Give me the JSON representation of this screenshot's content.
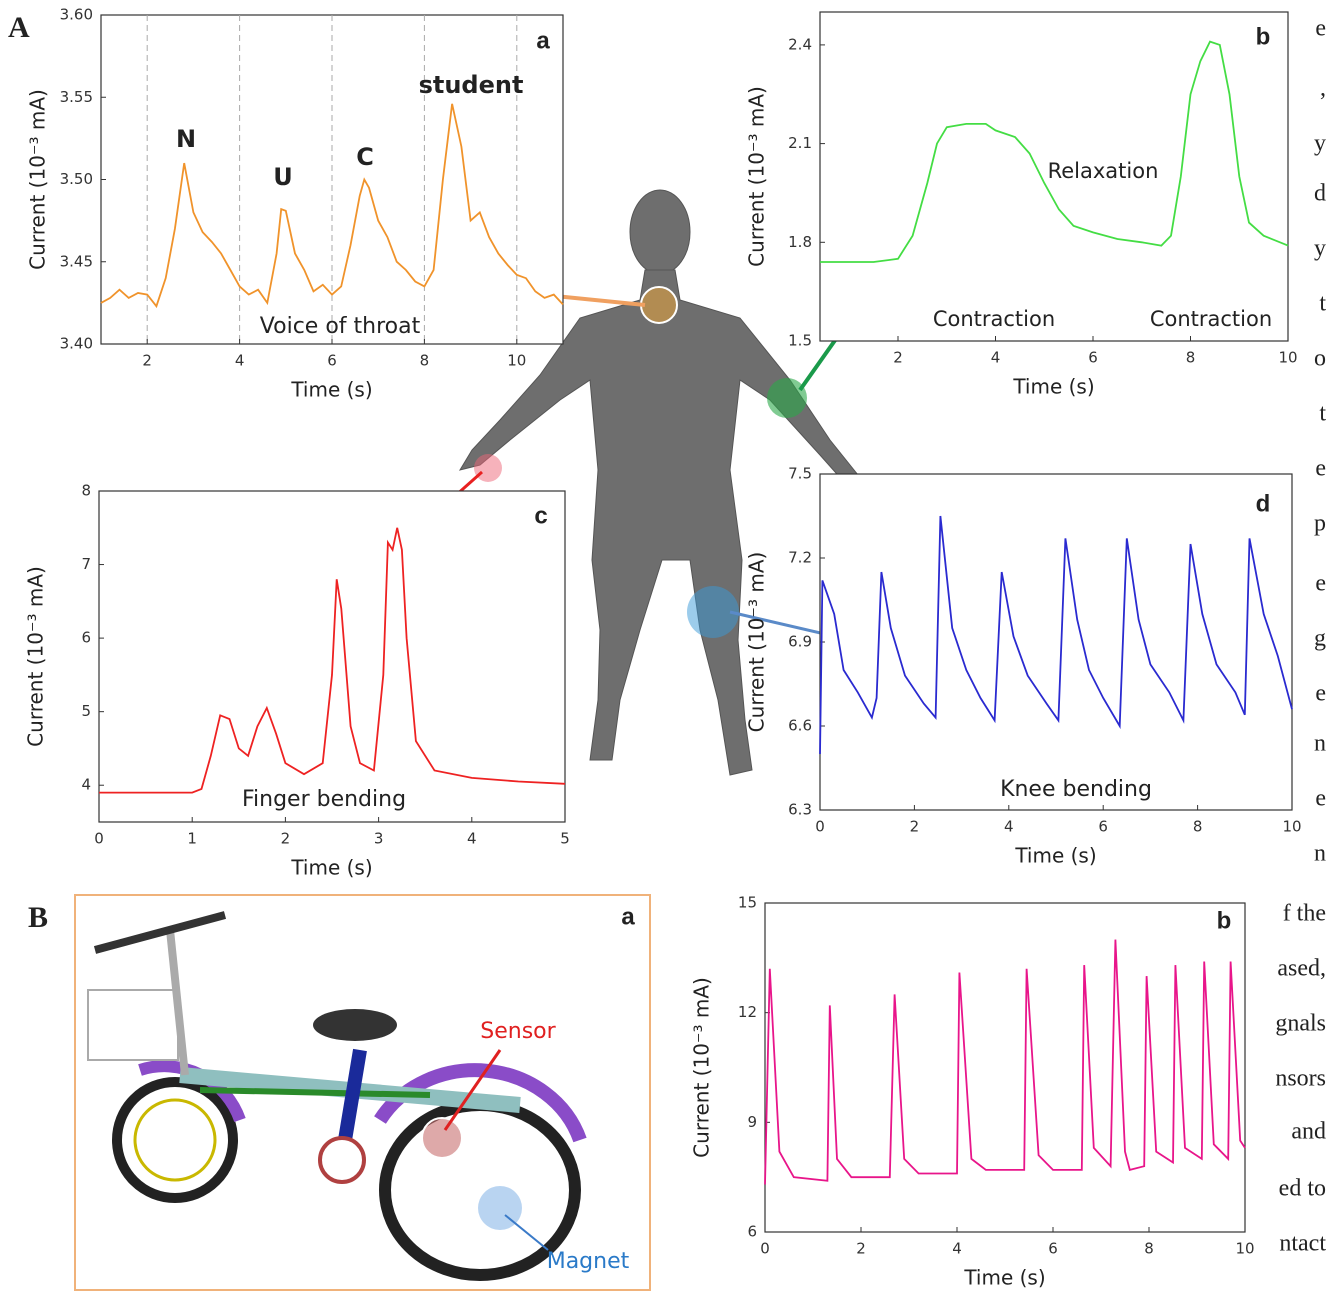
{
  "panel_labels": [
    "A",
    "B"
  ],
  "chart_data": [
    {
      "type": "line",
      "panel_label": "a",
      "color": "#f0932b",
      "grid": true,
      "x_label": "Time (s)",
      "y_label": "Current (10⁻³ mA)",
      "annotations": [
        "N",
        "U",
        "C",
        "student",
        "Voice of throat"
      ],
      "xlim": [
        1,
        11
      ],
      "xticks": [
        2,
        4,
        6,
        8,
        10
      ],
      "ylim": [
        3.4,
        3.6
      ],
      "yticks": [
        {
          "value": 3.4,
          "label": "3.40"
        },
        {
          "value": 3.45,
          "label": "3.45"
        },
        {
          "value": 3.5,
          "label": "3.50"
        },
        {
          "value": 3.55,
          "label": "3.55"
        },
        {
          "value": 3.6,
          "label": "3.60"
        }
      ],
      "x": [
        1.0,
        1.2,
        1.4,
        1.6,
        1.8,
        2.0,
        2.2,
        2.4,
        2.6,
        2.8,
        3.0,
        3.2,
        3.4,
        3.6,
        3.8,
        4.0,
        4.2,
        4.4,
        4.6,
        4.8,
        4.9,
        5.0,
        5.2,
        5.4,
        5.6,
        5.8,
        6.0,
        6.2,
        6.4,
        6.6,
        6.7,
        6.8,
        7.0,
        7.2,
        7.4,
        7.6,
        7.8,
        8.0,
        8.2,
        8.4,
        8.6,
        8.8,
        9.0,
        9.2,
        9.4,
        9.6,
        9.8,
        10.0,
        10.2,
        10.4,
        10.6,
        10.8,
        11.0
      ],
      "values": [
        3.425,
        3.428,
        3.433,
        3.428,
        3.431,
        3.43,
        3.423,
        3.44,
        3.47,
        3.51,
        3.48,
        3.468,
        3.462,
        3.455,
        3.445,
        3.435,
        3.43,
        3.433,
        3.425,
        3.455,
        3.482,
        3.481,
        3.455,
        3.445,
        3.432,
        3.436,
        3.43,
        3.435,
        3.46,
        3.49,
        3.5,
        3.495,
        3.475,
        3.465,
        3.45,
        3.445,
        3.438,
        3.435,
        3.445,
        3.5,
        3.546,
        3.52,
        3.475,
        3.48,
        3.465,
        3.455,
        3.448,
        3.442,
        3.44,
        3.432,
        3.428,
        3.43,
        3.424
      ]
    },
    {
      "type": "line",
      "panel_label": "b",
      "color": "#44dd44",
      "x_label": "Time (s)",
      "y_label": "Current (10⁻³ mA)",
      "annotations": [
        "Relaxation",
        "Contraction",
        "Contraction"
      ],
      "xlim": [
        0.4,
        10
      ],
      "xticks": [
        2,
        4,
        6,
        8,
        10
      ],
      "ylim": [
        1.5,
        2.5
      ],
      "yticks": [
        1.5,
        1.8,
        2.1,
        2.4
      ],
      "x": [
        0.4,
        1.0,
        1.5,
        2.0,
        2.3,
        2.6,
        2.8,
        3.0,
        3.4,
        3.8,
        4.0,
        4.4,
        4.7,
        5.0,
        5.3,
        5.6,
        6.0,
        6.5,
        7.0,
        7.4,
        7.6,
        7.8,
        8.0,
        8.2,
        8.4,
        8.6,
        8.8,
        9.0,
        9.2,
        9.5,
        10.0
      ],
      "values": [
        1.74,
        1.74,
        1.74,
        1.75,
        1.82,
        1.98,
        2.1,
        2.15,
        2.16,
        2.16,
        2.14,
        2.12,
        2.07,
        1.98,
        1.9,
        1.85,
        1.83,
        1.81,
        1.8,
        1.79,
        1.82,
        2.0,
        2.25,
        2.35,
        2.41,
        2.4,
        2.25,
        2.0,
        1.86,
        1.82,
        1.79
      ]
    },
    {
      "type": "line",
      "panel_label": "c",
      "color": "#ee2222",
      "x_label": "Time (s)",
      "y_label": "Current (10⁻³ mA)",
      "annotations": [
        "Finger bending"
      ],
      "xlim": [
        0,
        5
      ],
      "xticks": [
        0,
        1,
        2,
        3,
        4,
        5
      ],
      "ylim": [
        3.5,
        8
      ],
      "yticks": [
        4,
        5,
        6,
        7,
        8
      ],
      "x": [
        0,
        0.5,
        1.0,
        1.1,
        1.2,
        1.3,
        1.4,
        1.5,
        1.6,
        1.7,
        1.8,
        1.9,
        2.0,
        2.2,
        2.4,
        2.5,
        2.55,
        2.6,
        2.7,
        2.8,
        2.95,
        3.05,
        3.1,
        3.15,
        3.2,
        3.25,
        3.3,
        3.4,
        3.6,
        4.0,
        4.5,
        5.0
      ],
      "values": [
        3.9,
        3.9,
        3.9,
        3.95,
        4.4,
        4.95,
        4.9,
        4.5,
        4.4,
        4.8,
        5.05,
        4.7,
        4.3,
        4.15,
        4.3,
        5.5,
        6.8,
        6.4,
        4.8,
        4.3,
        4.2,
        5.5,
        7.3,
        7.2,
        7.5,
        7.2,
        6.0,
        4.6,
        4.2,
        4.1,
        4.05,
        4.02
      ]
    },
    {
      "type": "line",
      "panel_label": "d",
      "color": "#2a2ad0",
      "x_label": "Time (s)",
      "y_label": "Current (10⁻³ mA)",
      "annotations": [
        "Knee bending"
      ],
      "xlim": [
        0,
        10
      ],
      "xticks": [
        0,
        2,
        4,
        6,
        8,
        10
      ],
      "ylim": [
        6.3,
        7.5
      ],
      "yticks": [
        6.3,
        6.6,
        6.9,
        7.2,
        7.5
      ],
      "x": [
        0,
        0.05,
        0.3,
        0.5,
        0.8,
        1.1,
        1.2,
        1.3,
        1.5,
        1.8,
        2.2,
        2.45,
        2.55,
        2.8,
        3.1,
        3.4,
        3.7,
        3.85,
        4.1,
        4.4,
        4.8,
        5.05,
        5.2,
        5.45,
        5.7,
        6.0,
        6.35,
        6.5,
        6.75,
        7.0,
        7.4,
        7.7,
        7.85,
        8.1,
        8.4,
        8.8,
        9.0,
        9.1,
        9.4,
        9.7,
        10.0
      ],
      "values": [
        6.5,
        7.12,
        7.0,
        6.8,
        6.72,
        6.63,
        6.7,
        7.15,
        6.95,
        6.78,
        6.68,
        6.63,
        7.35,
        6.95,
        6.8,
        6.7,
        6.62,
        7.15,
        6.92,
        6.78,
        6.68,
        6.62,
        7.27,
        6.98,
        6.8,
        6.7,
        6.6,
        7.27,
        6.98,
        6.82,
        6.72,
        6.62,
        7.25,
        7.0,
        6.82,
        6.72,
        6.64,
        7.27,
        7.0,
        6.85,
        6.66
      ]
    },
    {
      "type": "line",
      "panel_label": "b",
      "color": "#e8158a",
      "x_label": "Time (s)",
      "y_label": "Current (10⁻³ mA)",
      "annotations": [],
      "xlim": [
        0,
        10
      ],
      "xticks": [
        0,
        2,
        4,
        6,
        8,
        10
      ],
      "ylim": [
        6,
        15
      ],
      "yticks": [
        6,
        9,
        12,
        15
      ],
      "x": [
        0,
        0.1,
        0.3,
        0.6,
        1.3,
        1.35,
        1.5,
        1.8,
        2.6,
        2.7,
        2.9,
        3.2,
        4.0,
        4.05,
        4.3,
        4.6,
        5.4,
        5.45,
        5.7,
        6.0,
        6.6,
        6.65,
        6.85,
        7.2,
        7.3,
        7.5,
        7.6,
        7.9,
        7.95,
        8.15,
        8.5,
        8.55,
        8.75,
        9.1,
        9.15,
        9.35,
        9.65,
        9.7,
        9.9,
        10.0
      ],
      "values": [
        7.3,
        13.2,
        8.2,
        7.5,
        7.4,
        12.2,
        8.0,
        7.5,
        7.5,
        12.5,
        8.0,
        7.6,
        7.6,
        13.1,
        8.0,
        7.7,
        7.7,
        13.2,
        8.1,
        7.7,
        7.7,
        13.3,
        8.3,
        7.8,
        14.0,
        8.2,
        7.7,
        7.8,
        13.0,
        8.2,
        7.9,
        13.3,
        8.3,
        8.0,
        13.4,
        8.4,
        8.0,
        13.4,
        8.5,
        8.3
      ]
    }
  ],
  "diagram": {
    "label": "a",
    "sensor": "Sensor",
    "magnet": "Magnet"
  },
  "side_text": [
    "e",
    ",",
    "y",
    "d",
    "y",
    "t",
    "o",
    "t",
    "e",
    "p",
    "e",
    "g",
    "e",
    "n",
    "e",
    "n",
    "f the",
    "ased,",
    "gnals",
    "nsors",
    "and",
    "ed to",
    "ntact"
  ]
}
